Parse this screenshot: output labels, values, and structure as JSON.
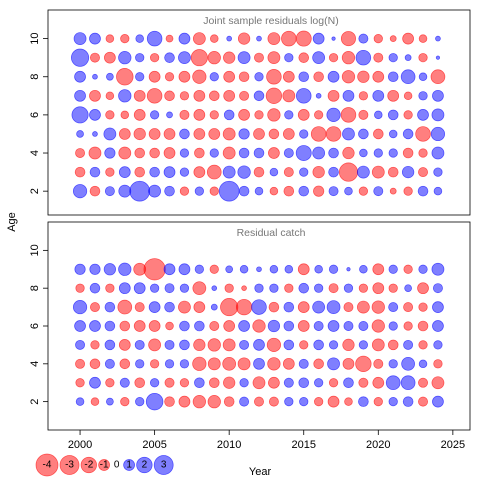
{
  "ylabel": "Age",
  "xlabel": "Year",
  "colors": {
    "positive": "#0000ff",
    "negative": "#ff0000",
    "opacity": 0.5
  },
  "legend": {
    "values": [
      -4,
      -3,
      -2,
      -1,
      0,
      1,
      2,
      3
    ]
  },
  "chart_data": [
    {
      "type": "bubble",
      "title": "Joint sample residuals log(N)",
      "x": [
        2000,
        2001,
        2002,
        2003,
        2004,
        2005,
        2006,
        2007,
        2008,
        2009,
        2010,
        2011,
        2012,
        2013,
        2014,
        2015,
        2016,
        2017,
        2018,
        2019,
        2020,
        2021,
        2022,
        2023,
        2024
      ],
      "y": [
        2,
        3,
        4,
        5,
        6,
        7,
        8,
        9,
        10
      ],
      "xlim": [
        1997.85,
        2026.15
      ],
      "ylim": [
        0.75,
        11.5
      ],
      "yticks": [
        2,
        4,
        6,
        8,
        10
      ],
      "values": [
        [
          1.5,
          -0.8,
          0.7,
          1.2,
          3.3,
          1.2,
          0.8,
          -0.6,
          0.6,
          -0.6,
          3.3,
          0.8,
          0.5,
          -0.5,
          -0.8,
          0.8,
          -0.9,
          0.7,
          0.5,
          -0.6,
          0.7,
          -0.3,
          -0.6,
          0.8,
          0.5
        ],
        [
          -0.8,
          0.8,
          -0.6,
          1,
          -0.8,
          0.8,
          1,
          0.6,
          -1,
          -1.6,
          1.2,
          1.3,
          -0.8,
          0.5,
          -0.7,
          0.6,
          -1.1,
          0.8,
          -2.8,
          1.2,
          -1.2,
          -0.8,
          1.1,
          -0.7,
          0.6
        ],
        [
          -0.7,
          -1.2,
          0.9,
          -1.2,
          -0.8,
          -0.8,
          -1,
          0.6,
          -0.8,
          0.6,
          -1.2,
          0.8,
          0.8,
          -1,
          0.7,
          1.9,
          1.2,
          0.8,
          -1.1,
          0.5,
          0.6,
          0.6,
          -0.8,
          -0.6,
          1.2
        ],
        [
          0.4,
          0.2,
          1.2,
          -1,
          -1.1,
          -1,
          -1,
          0.8,
          -1,
          -1,
          -1.2,
          0.9,
          -1,
          -0.8,
          -1,
          0.6,
          -1.8,
          -1.8,
          1.2,
          0.8,
          -0.8,
          0.5,
          0.8,
          -1.8,
          1.5
        ],
        [
          2.2,
          1,
          -0.6,
          -0.5,
          -1,
          0.6,
          0.3,
          -0.7,
          -1,
          -0.6,
          0.8,
          -1,
          -0.6,
          -1.3,
          0.6,
          -1,
          -0.6,
          1.5,
          -1.8,
          -0.7,
          0.5,
          0.8,
          -0.6,
          1,
          1.2
        ],
        [
          1,
          -1,
          -0.5,
          1.3,
          -1,
          -1.8,
          -0.8,
          -0.6,
          -1,
          -0.8,
          -1,
          -0.7,
          0.8,
          -2,
          -1.2,
          1.8,
          0.2,
          -1,
          1,
          -0.6,
          1,
          -1,
          -0.5,
          0.6,
          1
        ],
        [
          1,
          0.2,
          0.4,
          -2.3,
          0.6,
          -1,
          -0.6,
          -1,
          -1.5,
          0.6,
          -1,
          -0.8,
          0.6,
          -1.8,
          -1,
          0.8,
          -0.8,
          1,
          -1.3,
          -1.1,
          -1,
          0.8,
          1.6,
          0.5,
          -1.6
        ],
        [
          2.5,
          -0.7,
          -1,
          1.3,
          0.6,
          -0.6,
          0.8,
          1.2,
          -2.2,
          -1.3,
          -1.1,
          1.2,
          -0.7,
          -1.2,
          0.6,
          -0.8,
          1.2,
          -0.6,
          -1.3,
          1.8,
          -0.7,
          0.6,
          0.3,
          -0.6,
          0.1
        ],
        [
          1.2,
          1,
          -0.5,
          -0.6,
          0.5,
          1.8,
          -0.4,
          1,
          -1.2,
          -0.5,
          0.2,
          -1.1,
          0.2,
          -1.2,
          -1.8,
          -1.9,
          1,
          0.1,
          -1.7,
          0.7,
          -0.6,
          -0.3,
          -1,
          -0.5,
          0.2
        ]
      ]
    },
    {
      "type": "bubble",
      "title": "Residual catch",
      "x": [
        2000,
        2001,
        2002,
        2003,
        2004,
        2005,
        2006,
        2007,
        2008,
        2009,
        2010,
        2011,
        2012,
        2013,
        2014,
        2015,
        2016,
        2017,
        2018,
        2019,
        2020,
        2021,
        2022,
        2023,
        2024
      ],
      "y": [
        2,
        3,
        4,
        5,
        6,
        7,
        8,
        9
      ],
      "xlim": [
        1997.85,
        2026.15
      ],
      "ylim": [
        0.5,
        11.5
      ],
      "yticks": [
        2,
        4,
        6,
        8,
        10
      ],
      "xticks": [
        2000,
        2005,
        2010,
        2015,
        2020,
        2025
      ],
      "values": [
        [
          0.5,
          -0.5,
          0.4,
          -0.6,
          0.6,
          2.3,
          -0.8,
          -1,
          -1.3,
          -1.3,
          -0.8,
          0.7,
          -0.7,
          -0.7,
          0.6,
          0.6,
          -0.6,
          -1,
          -0.5,
          0.8,
          -0.6,
          0.6,
          0.8,
          -0.7,
          1
        ],
        [
          -0.6,
          1,
          -0.6,
          0.7,
          -0.8,
          0.6,
          -0.7,
          -0.6,
          0.8,
          -0.8,
          -1.1,
          0.6,
          -1.2,
          -1,
          0.7,
          0.8,
          0.6,
          -0.6,
          0.8,
          -0.7,
          -1,
          1.6,
          1.6,
          -0.7,
          -1.2
        ],
        [
          -0.7,
          -0.8,
          0.7,
          -0.8,
          0.6,
          -0.6,
          0.6,
          0.6,
          -1.5,
          -1.2,
          -1.4,
          -1.2,
          1,
          -1.3,
          -1,
          0.7,
          -0.8,
          1.2,
          -1,
          -2,
          -0.7,
          0.6,
          1.4,
          0.5,
          -0.6
        ],
        [
          0.7,
          -0.6,
          0.8,
          -1,
          0.7,
          -1.2,
          0.7,
          0.8,
          -1.1,
          -1.3,
          -1.2,
          0.7,
          1,
          -1.5,
          0.8,
          -0.6,
          0.8,
          0.6,
          -1.1,
          0.6,
          -1.2,
          -0.8,
          0.7,
          -0.6,
          0.6
        ],
        [
          1,
          1,
          0.8,
          -0.8,
          -1,
          -1,
          -0.5,
          0.8,
          0.8,
          -0.7,
          -1,
          1,
          -1.3,
          1.1,
          0.8,
          -1,
          0.7,
          1,
          0.7,
          0.7,
          -1.3,
          0.6,
          -0.6,
          -0.8,
          1
        ],
        [
          1.5,
          -0.7,
          0.8,
          -1.6,
          -0.7,
          1,
          0.8,
          -1.2,
          -1,
          0.3,
          -2.5,
          -2,
          1.8,
          -0.8,
          0.8,
          -1,
          1.2,
          1.4,
          -0.7,
          -1.2,
          -1.3,
          0.7,
          -0.7,
          -0.6,
          1
        ],
        [
          -0.6,
          0.8,
          -0.6,
          1,
          1,
          0.6,
          0.7,
          0.6,
          -1.4,
          0.2,
          -0.6,
          -0.2,
          0.6,
          0.6,
          -0.6,
          0.8,
          0.6,
          -0.7,
          0.6,
          -0.6,
          -1,
          -0.6,
          0.4,
          -1,
          0.7
        ],
        [
          0.9,
          0.9,
          1.1,
          1.3,
          -1.2,
          -3.8,
          1,
          1,
          0.6,
          -0.6,
          0.4,
          0.5,
          0.2,
          0.5,
          0.5,
          -1,
          0.5,
          0.6,
          0.1,
          0.5,
          -1,
          0.6,
          -0.6,
          0.6,
          1.2
        ]
      ]
    }
  ]
}
